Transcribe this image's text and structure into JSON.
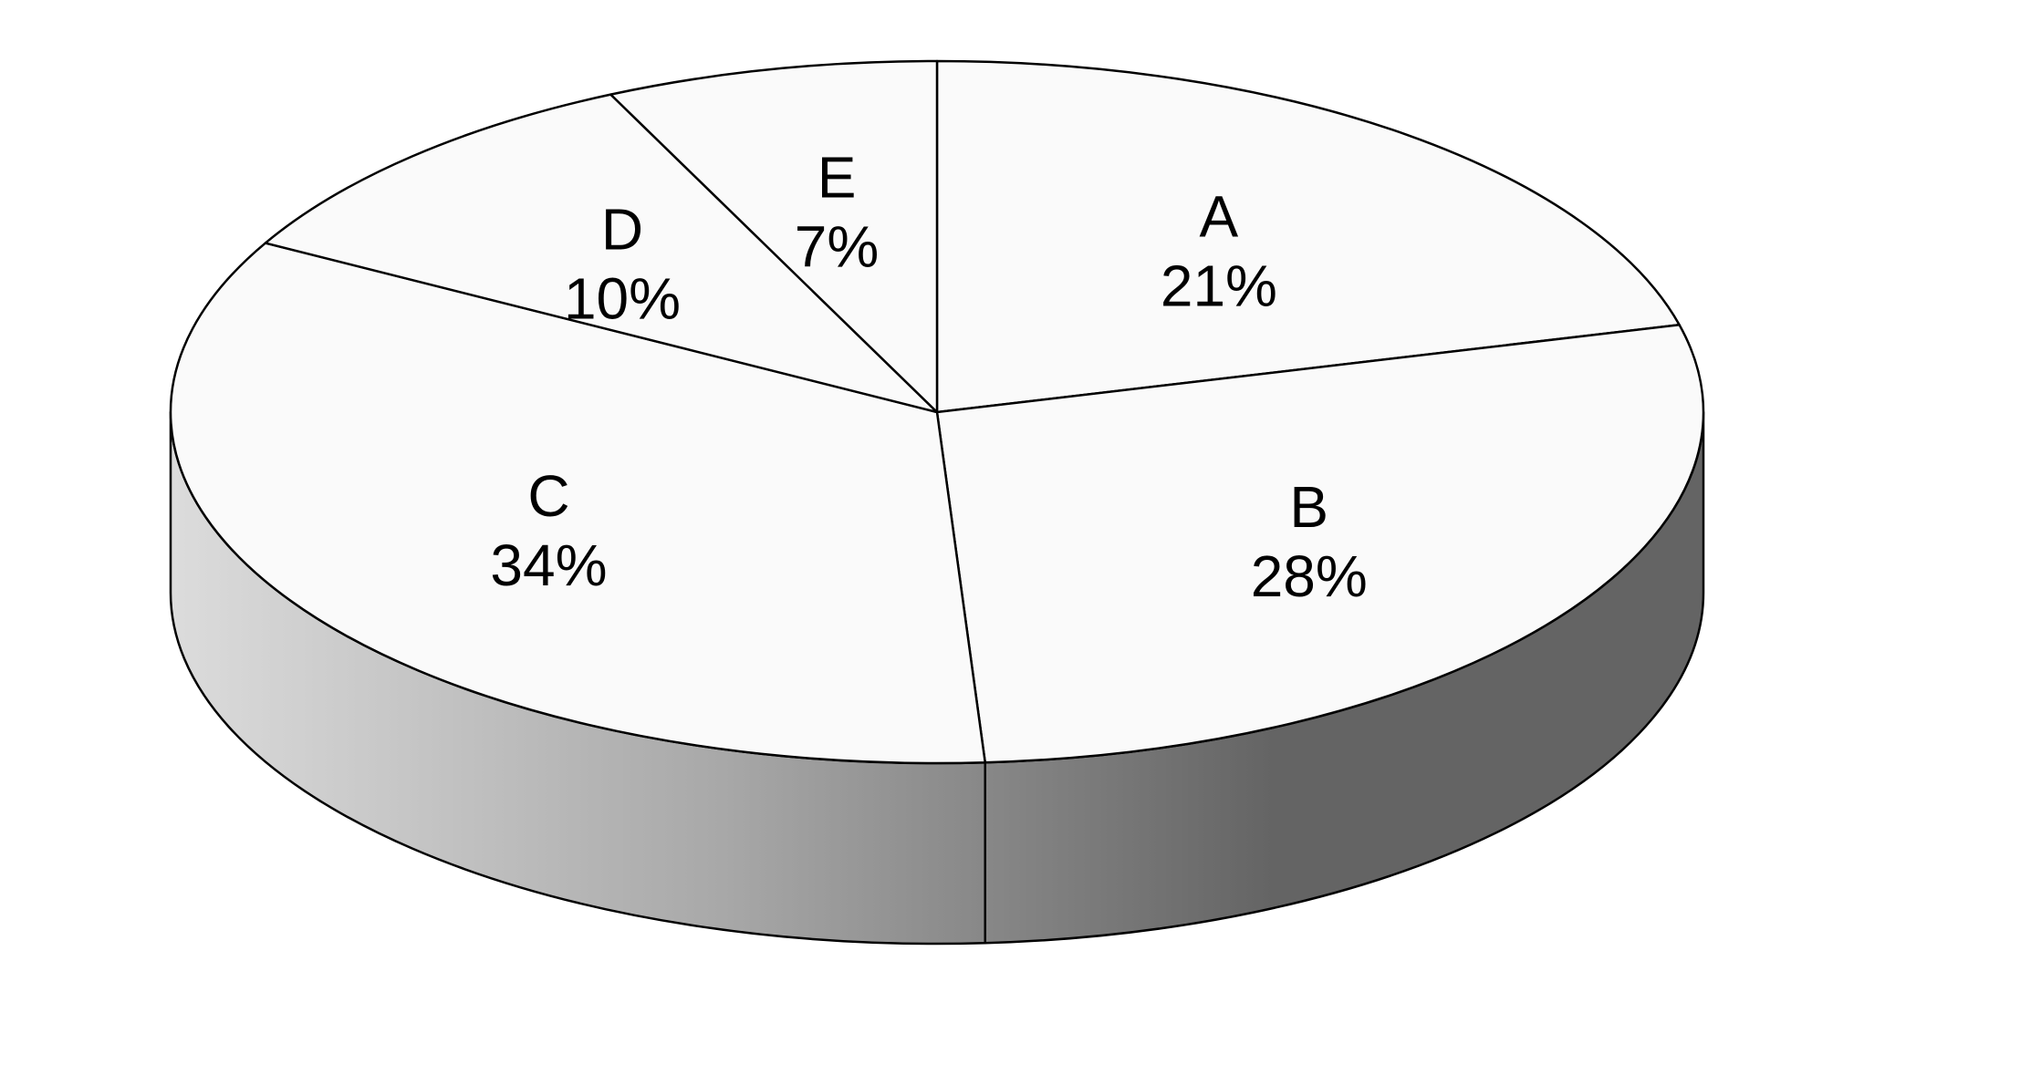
{
  "chart_data": {
    "type": "pie",
    "style": "3d",
    "categories": [
      "A",
      "B",
      "C",
      "D",
      "E"
    ],
    "values": [
      21,
      28,
      34,
      10,
      7
    ],
    "value_labels": [
      "21%",
      "28%",
      "34%",
      "10%",
      "7%"
    ],
    "start_angle_deg": 90,
    "direction": "clockwise",
    "legend": "none",
    "colors": {
      "top_face": "#fafafa",
      "outline": "#000000",
      "side_light": "#dcdcdc",
      "side_mid": "#a8a8a8",
      "side_dark": "#646464",
      "background": "#ffffff"
    }
  }
}
